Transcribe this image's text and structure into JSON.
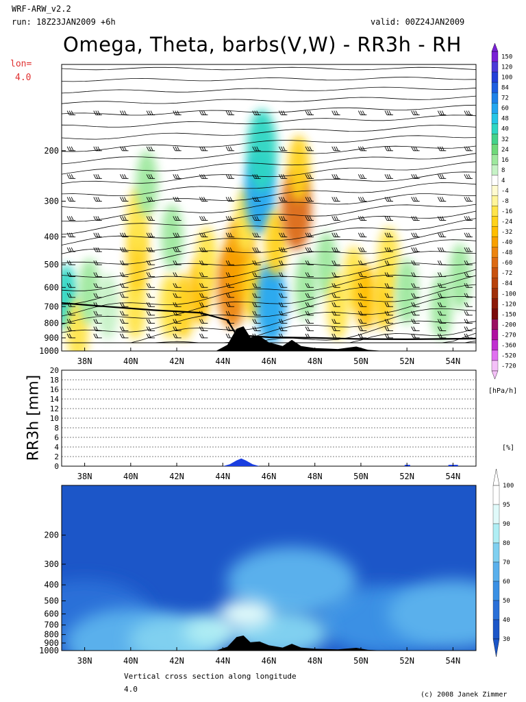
{
  "header": {
    "model": "WRF-ARW_v2.2",
    "run": "run: 18Z23JAN2009 +6h",
    "valid": "valid: 00Z24JAN2009",
    "title": "Omega, Theta, barbs(V,W) - RR3h - RH",
    "lon_label": "lon=",
    "lon_value": "4.0"
  },
  "footer": {
    "caption": "Vertical cross section along longitude",
    "value": "4.0",
    "credit": "(c) 2008 Janek Zimmer"
  },
  "chart_data": [
    {
      "type": "heatmap",
      "name": "omega-panel",
      "title": "Omega, Theta, barbs(V,W)",
      "x_ticks": [
        "38N",
        "40N",
        "42N",
        "44N",
        "46N",
        "48N",
        "50N",
        "52N",
        "54N"
      ],
      "x_range": [
        37,
        55
      ],
      "y_ticks": [
        200,
        300,
        400,
        500,
        600,
        700,
        800,
        900,
        1000
      ],
      "y_range_hPa": [
        100,
        1000
      ],
      "y_scale": "log-pressure",
      "colorbar": {
        "unit": "[hPa/h]",
        "labels": [
          "150",
          "120",
          "100",
          "84",
          "72",
          "60",
          "48",
          "40",
          "32",
          "24",
          "16",
          "8",
          "4",
          "-4",
          "-8",
          "-16",
          "-24",
          "-32",
          "-40",
          "-48",
          "-60",
          "-72",
          "-84",
          "-100",
          "-120",
          "-150",
          "-200",
          "-270",
          "-360",
          "-520",
          "-720"
        ],
        "colors": [
          "#7a1fd6",
          "#4b3ad8",
          "#2340d8",
          "#1e5ee0",
          "#1e82e8",
          "#23a6ef",
          "#26c6e6",
          "#2fd6c3",
          "#44d28b",
          "#6fd97a",
          "#9ee89e",
          "#c6f2c6",
          "#ffffff",
          "#fffbd0",
          "#fff59a",
          "#ffe44a",
          "#ffd21a",
          "#ffbe00",
          "#f8a000",
          "#ec8410",
          "#dc6a14",
          "#c85210",
          "#b8420c",
          "#a0300a",
          "#8c1a08",
          "#7a0a0a",
          "#9a1060",
          "#b010a0",
          "#c030d0",
          "#e070f0",
          "#f4c0f8"
        ]
      },
      "cells": [
        {
          "lat": 37.2,
          "p": 650,
          "v": 36
        },
        {
          "lat": 37.7,
          "p": 850,
          "v": -20
        },
        {
          "lat": 38.2,
          "p": 620,
          "v": 12
        },
        {
          "lat": 39.0,
          "p": 700,
          "v": 10
        },
        {
          "lat": 40.2,
          "p": 700,
          "v": -16
        },
        {
          "lat": 40.3,
          "p": 480,
          "v": -24
        },
        {
          "lat": 40.3,
          "p": 350,
          "v": -16
        },
        {
          "lat": 40.7,
          "p": 260,
          "v": 14
        },
        {
          "lat": 41.7,
          "p": 700,
          "v": -16
        },
        {
          "lat": 41.8,
          "p": 400,
          "v": 14
        },
        {
          "lat": 42.3,
          "p": 700,
          "v": -24
        },
        {
          "lat": 43.0,
          "p": 620,
          "v": -32
        },
        {
          "lat": 43.3,
          "p": 480,
          "v": -16
        },
        {
          "lat": 44.4,
          "p": 600,
          "v": -48
        },
        {
          "lat": 44.7,
          "p": 480,
          "v": -40
        },
        {
          "lat": 45.0,
          "p": 350,
          "v": -16
        },
        {
          "lat": 45.3,
          "p": 600,
          "v": -24
        },
        {
          "lat": 45.6,
          "p": 280,
          "v": 60
        },
        {
          "lat": 45.7,
          "p": 200,
          "v": 40
        },
        {
          "lat": 46.1,
          "p": 680,
          "v": 60
        },
        {
          "lat": 46.3,
          "p": 420,
          "v": -24
        },
        {
          "lat": 47.2,
          "p": 320,
          "v": -60
        },
        {
          "lat": 47.3,
          "p": 230,
          "v": -24
        },
        {
          "lat": 47.6,
          "p": 600,
          "v": 16
        },
        {
          "lat": 48.5,
          "p": 500,
          "v": 16
        },
        {
          "lat": 49.0,
          "p": 700,
          "v": -16
        },
        {
          "lat": 49.7,
          "p": 560,
          "v": -16
        },
        {
          "lat": 50.2,
          "p": 650,
          "v": -32
        },
        {
          "lat": 51.0,
          "p": 650,
          "v": -24
        },
        {
          "lat": 51.2,
          "p": 480,
          "v": -16
        },
        {
          "lat": 52.0,
          "p": 620,
          "v": 16
        },
        {
          "lat": 53.5,
          "p": 700,
          "v": 12
        },
        {
          "lat": 54.3,
          "p": 550,
          "v": 12
        }
      ],
      "pbl_line": [
        {
          "lat": 37.0,
          "p": 680
        },
        {
          "lat": 39.0,
          "p": 700
        },
        {
          "lat": 41.0,
          "p": 720
        },
        {
          "lat": 43.0,
          "p": 735
        },
        {
          "lat": 44.2,
          "p": 780
        },
        {
          "lat": 44.6,
          "p": 880
        },
        {
          "lat": 46.0,
          "p": 895
        },
        {
          "lat": 48.0,
          "p": 900
        },
        {
          "lat": 50.0,
          "p": 908
        },
        {
          "lat": 52.0,
          "p": 910
        },
        {
          "lat": 55.0,
          "p": 905
        }
      ]
    },
    {
      "type": "area",
      "name": "rr3h-panel",
      "ylabel": "RR3h [mm]",
      "y_ticks": [
        0,
        2,
        4,
        6,
        8,
        10,
        12,
        14,
        16,
        18,
        20
      ],
      "ylim": [
        0,
        20
      ],
      "x_ticks": [
        "38N",
        "40N",
        "42N",
        "44N",
        "46N",
        "48N",
        "50N",
        "52N",
        "54N"
      ],
      "x_range": [
        37,
        55
      ],
      "color": "#1a3ee0",
      "x": [
        44.0,
        44.3,
        44.6,
        44.8,
        45.0,
        45.3,
        45.6
      ],
      "values": [
        0,
        0.4,
        1.2,
        1.6,
        1.2,
        0.4,
        0
      ]
    },
    {
      "type": "heatmap",
      "name": "rh-panel",
      "x_ticks": [
        "38N",
        "40N",
        "42N",
        "44N",
        "46N",
        "48N",
        "50N",
        "52N",
        "54N"
      ],
      "x_range": [
        37,
        55
      ],
      "y_ticks": [
        200,
        300,
        400,
        500,
        600,
        700,
        800,
        900,
        1000
      ],
      "colorbar": {
        "unit": "[%]",
        "labels": [
          "100",
          "95",
          "90",
          "80",
          "70",
          "60",
          "50",
          "40",
          "30"
        ],
        "colors": [
          "#ffffff",
          "#e0fafa",
          "#b0eef4",
          "#80d0f0",
          "#5ab0ec",
          "#3a90e4",
          "#2a70d8",
          "#1c56c8"
        ]
      },
      "regions": [
        {
          "lat": 45.0,
          "p": 600,
          "v": 95
        },
        {
          "lat": 43.5,
          "p": 760,
          "v": 90
        },
        {
          "lat": 42.0,
          "p": 860,
          "v": 80
        },
        {
          "lat": 46.5,
          "p": 780,
          "v": 80
        },
        {
          "lat": 40.0,
          "p": 900,
          "v": 70
        },
        {
          "lat": 47.0,
          "p": 380,
          "v": 70
        },
        {
          "lat": 51.0,
          "p": 650,
          "v": 60
        },
        {
          "lat": 54.0,
          "p": 600,
          "v": 70
        },
        {
          "lat": 38.0,
          "p": 600,
          "v": 50
        }
      ]
    }
  ],
  "terrain": [
    {
      "lat": 43.7,
      "h": 0
    },
    {
      "lat": 44.2,
      "h": 0.25
    },
    {
      "lat": 44.6,
      "h": 0.9
    },
    {
      "lat": 44.9,
      "h": 1.0
    },
    {
      "lat": 45.2,
      "h": 0.55
    },
    {
      "lat": 45.6,
      "h": 0.6
    },
    {
      "lat": 46.0,
      "h": 0.35
    },
    {
      "lat": 46.6,
      "h": 0.2
    },
    {
      "lat": 47.0,
      "h": 0.45
    },
    {
      "lat": 47.4,
      "h": 0.2
    },
    {
      "lat": 48.0,
      "h": 0.12
    },
    {
      "lat": 49.0,
      "h": 0.08
    },
    {
      "lat": 49.8,
      "h": 0.18
    },
    {
      "lat": 50.3,
      "h": 0.05
    },
    {
      "lat": 51.0,
      "h": 0
    }
  ]
}
